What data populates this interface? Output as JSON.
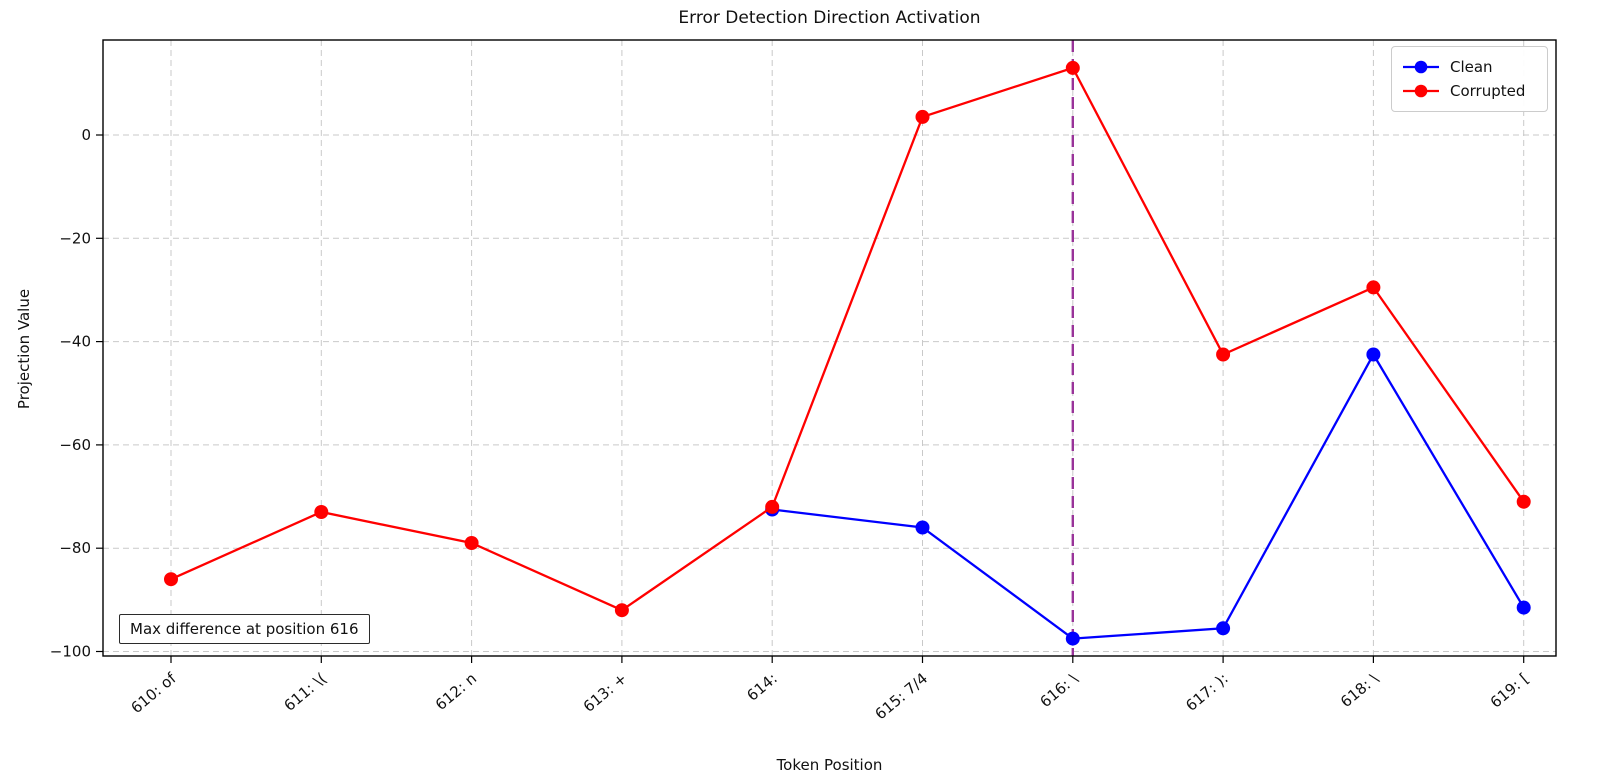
{
  "chart_data": {
    "type": "line",
    "title": "Error Detection Direction Activation",
    "xlabel": "Token Position",
    "ylabel": "Projection Value",
    "categories": [
      "610: of",
      "611: \\(",
      "612: n",
      "613: +",
      "614: ",
      "615: 7/4",
      "616: \\",
      "617: ):",
      "618: \\",
      "619: ["
    ],
    "series": [
      {
        "name": "Clean",
        "color": "#0000ff",
        "values": [
          null,
          null,
          null,
          null,
          -72.5,
          -76,
          -97.5,
          -95.5,
          -42.5,
          -91.5
        ]
      },
      {
        "name": "Corrupted",
        "color": "#ff0000",
        "values": [
          -86,
          -73,
          -79,
          -92,
          -72,
          3.5,
          13,
          -42.5,
          -29.5,
          -71
        ]
      }
    ],
    "yticks": [
      0,
      -20,
      -40,
      -60,
      -80,
      -100
    ],
    "ytick_labels": [
      "0",
      "−20",
      "−40",
      "−60",
      "−80",
      "−100"
    ],
    "ylim": [
      -101,
      18.5
    ],
    "grid": true,
    "grid_style": "dashed",
    "legend_position": "upper right",
    "vline": {
      "x_label": "616: \\",
      "x_index": 6,
      "color": "#993399",
      "style": "dashed"
    },
    "annotation": {
      "text": "Max difference at position 616"
    }
  }
}
